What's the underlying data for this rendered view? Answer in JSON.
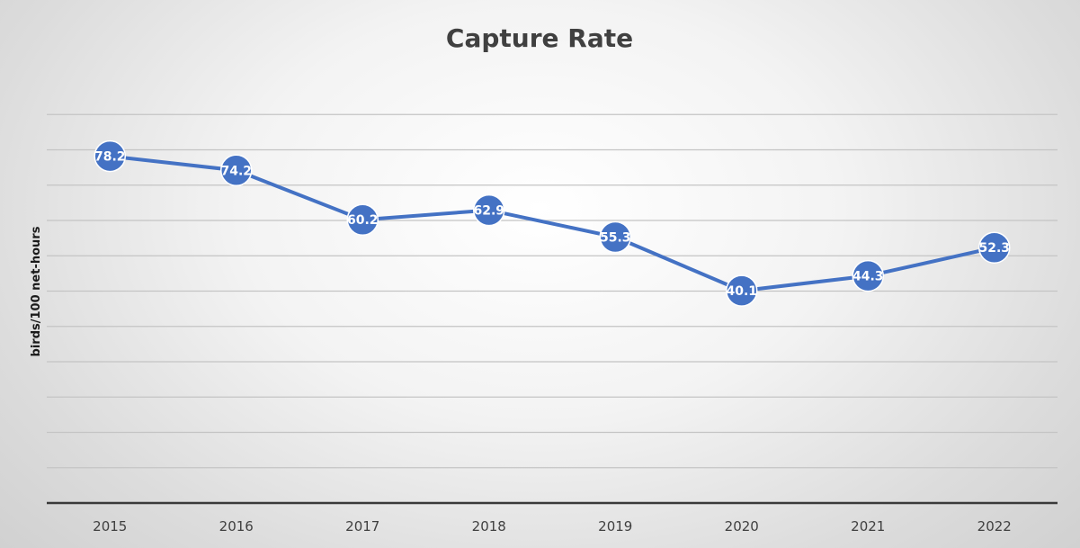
{
  "chart_data": {
    "type": "line",
    "title": "Capture Rate",
    "xlabel": "",
    "ylabel": "birds/100 net-hours",
    "categories": [
      "2015",
      "2016",
      "2017",
      "2018",
      "2019",
      "2020",
      "2021",
      "2022"
    ],
    "series": [
      {
        "values": [
          78.2,
          74.2,
          60.2,
          62.9,
          55.3,
          40.1,
          44.3,
          52.3
        ],
        "color": "#4472c4"
      }
    ],
    "ylim": [
      -20,
      100
    ],
    "gridlines": [
      -10,
      0,
      10,
      20,
      30,
      40,
      50,
      60,
      70,
      80,
      90
    ],
    "grid": true,
    "data_labels": true,
    "legend": "none"
  }
}
